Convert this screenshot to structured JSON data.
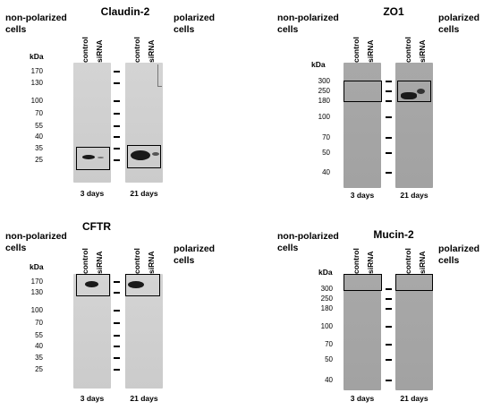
{
  "panels": [
    {
      "title": "Claudin-2",
      "left_label": [
        "non-polarized",
        "cells"
      ],
      "right_label": [
        "polarized",
        "cells"
      ],
      "unit": "kDa",
      "lanes": [
        "control",
        "siRNA"
      ],
      "markers": [
        "170",
        "130",
        "100",
        "70",
        "55",
        "40",
        "35",
        "25"
      ],
      "days": [
        "3 days",
        "21 days"
      ]
    },
    {
      "title": "ZO1",
      "left_label": [
        "non-polarized",
        "cells"
      ],
      "right_label": [
        "polarized",
        "cells"
      ],
      "unit": "kDa",
      "lanes": [
        "control",
        "siRNA"
      ],
      "markers": [
        "300",
        "250",
        "180",
        "100",
        "70",
        "50",
        "40"
      ],
      "days": [
        "3 days",
        "21 days"
      ]
    },
    {
      "title": "CFTR",
      "left_label": [
        "non-polarized",
        "cells"
      ],
      "right_label": [
        "polarized",
        "cells"
      ],
      "unit": "kDa",
      "lanes": [
        "control",
        "siRNA"
      ],
      "markers": [
        "170",
        "130",
        "100",
        "70",
        "55",
        "40",
        "35",
        "25"
      ],
      "days": [
        "3 days",
        "21 days"
      ]
    },
    {
      "title": "Mucin-2",
      "left_label": [
        "non-polarized",
        "cells"
      ],
      "right_label": [
        "polarized",
        "cells"
      ],
      "unit": "kDa",
      "lanes": [
        "control",
        "siRNA"
      ],
      "markers": [
        "300",
        "250",
        "180",
        "100",
        "70",
        "50",
        "40"
      ],
      "days": [
        "3 days",
        "21 days"
      ]
    }
  ]
}
